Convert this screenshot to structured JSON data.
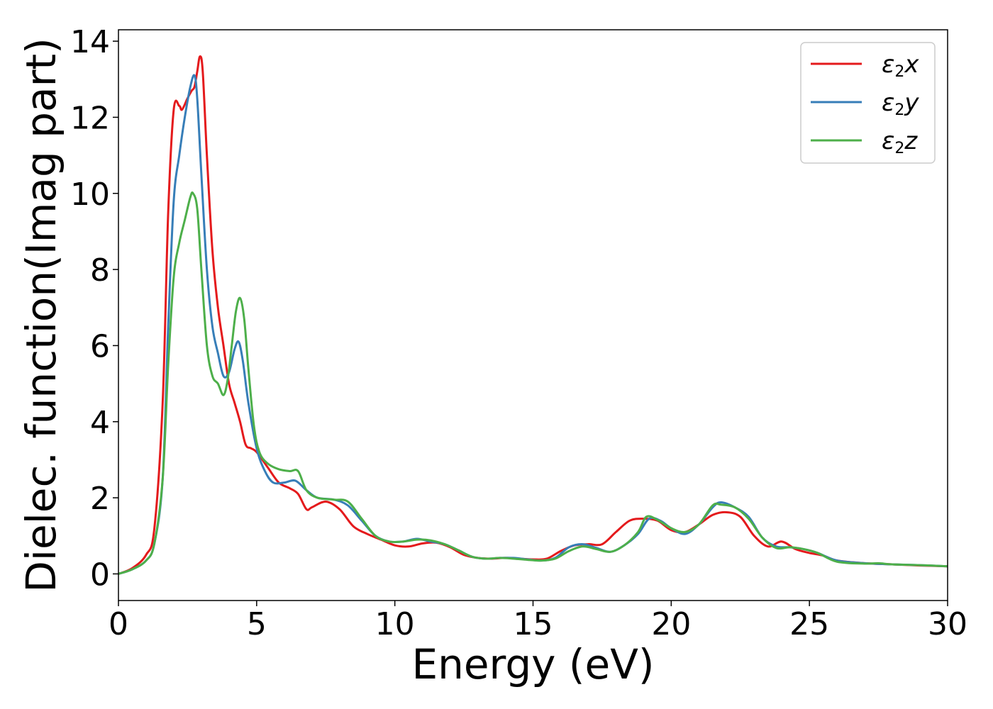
{
  "chart_data": {
    "type": "line",
    "title": "",
    "xlabel": "Energy (eV)",
    "ylabel": "Dielec. function(Imag part)",
    "xlim": [
      0,
      30
    ],
    "ylim": [
      -0.7,
      14.3
    ],
    "xticks": [
      0,
      5,
      10,
      15,
      20,
      25,
      30
    ],
    "xtick_labels": [
      "0",
      "5",
      "10",
      "15",
      "20",
      "25",
      "30"
    ],
    "yticks": [
      0,
      2,
      4,
      6,
      8,
      10,
      12,
      14
    ],
    "ytick_labels": [
      "0",
      "2",
      "4",
      "6",
      "8",
      "10",
      "12",
      "14"
    ],
    "grid": false,
    "legend_position": "top-right",
    "series": [
      {
        "name": "ε₂x",
        "legend_main": "ε",
        "legend_sub": "2",
        "legend_suffix": "x",
        "color": "#e41a1c",
        "x": [
          0,
          0.5,
          1.0,
          1.3,
          1.6,
          1.8,
          2.0,
          2.2,
          2.3,
          2.5,
          2.65,
          2.75,
          2.85,
          2.95,
          3.05,
          3.2,
          3.4,
          3.6,
          3.8,
          4.0,
          4.2,
          4.4,
          4.6,
          4.8,
          5.0,
          5.4,
          5.8,
          6.2,
          6.5,
          6.8,
          7.0,
          7.5,
          8.0,
          8.5,
          9.0,
          9.5,
          10.0,
          10.5,
          11.0,
          11.5,
          12.0,
          12.5,
          13.0,
          13.5,
          14.0,
          14.5,
          15.0,
          15.5,
          16.0,
          16.5,
          17.0,
          17.5,
          18.0,
          18.5,
          19.0,
          19.5,
          20.0,
          20.5,
          21.0,
          21.5,
          22.0,
          22.5,
          23.0,
          23.5,
          24.0,
          24.5,
          25.0,
          25.5,
          26.0,
          27.0,
          28.0,
          29.0,
          30.0
        ],
        "y": [
          0.0,
          0.15,
          0.5,
          1.2,
          4.5,
          9.5,
          12.2,
          12.3,
          12.2,
          12.5,
          12.7,
          12.8,
          13.2,
          13.6,
          13.2,
          11.0,
          8.5,
          7.0,
          6.0,
          5.0,
          4.5,
          4.0,
          3.4,
          3.3,
          3.2,
          2.8,
          2.4,
          2.25,
          2.1,
          1.7,
          1.75,
          1.9,
          1.7,
          1.25,
          1.05,
          0.9,
          0.75,
          0.72,
          0.8,
          0.82,
          0.7,
          0.5,
          0.42,
          0.4,
          0.42,
          0.4,
          0.38,
          0.4,
          0.6,
          0.75,
          0.78,
          0.78,
          1.1,
          1.4,
          1.45,
          1.4,
          1.15,
          1.1,
          1.3,
          1.55,
          1.62,
          1.5,
          1.0,
          0.72,
          0.85,
          0.65,
          0.55,
          0.48,
          0.35,
          0.28,
          0.25,
          0.22,
          0.2
        ]
      },
      {
        "name": "ε₂y",
        "legend_main": "ε",
        "legend_sub": "2",
        "legend_suffix": "y",
        "color": "#377eb8",
        "x": [
          0,
          0.5,
          1.0,
          1.3,
          1.6,
          1.8,
          2.0,
          2.2,
          2.4,
          2.6,
          2.75,
          2.85,
          3.0,
          3.2,
          3.4,
          3.6,
          3.8,
          4.0,
          4.2,
          4.35,
          4.5,
          4.7,
          5.0,
          5.3,
          5.6,
          6.0,
          6.4,
          6.8,
          7.2,
          7.8,
          8.3,
          8.8,
          9.3,
          9.8,
          10.3,
          10.8,
          11.3,
          11.8,
          12.3,
          12.8,
          13.3,
          13.8,
          14.3,
          14.8,
          15.3,
          15.8,
          16.3,
          16.8,
          17.3,
          17.8,
          18.3,
          18.8,
          19.2,
          19.6,
          20.0,
          20.5,
          21.0,
          21.5,
          21.8,
          22.3,
          22.8,
          23.3,
          23.8,
          24.3,
          24.8,
          25.3,
          26.0,
          27.0,
          28.0,
          29.0,
          30.0
        ],
        "y": [
          0.0,
          0.12,
          0.35,
          0.8,
          2.5,
          6.5,
          9.8,
          11.0,
          12.0,
          12.8,
          13.1,
          12.5,
          10.5,
          8.0,
          6.5,
          5.8,
          5.2,
          5.3,
          5.9,
          6.1,
          5.6,
          4.5,
          3.3,
          2.7,
          2.4,
          2.4,
          2.45,
          2.2,
          2.0,
          1.95,
          1.8,
          1.4,
          1.0,
          0.85,
          0.85,
          0.92,
          0.85,
          0.78,
          0.62,
          0.45,
          0.4,
          0.42,
          0.42,
          0.38,
          0.35,
          0.42,
          0.7,
          0.78,
          0.68,
          0.58,
          0.75,
          1.05,
          1.45,
          1.4,
          1.2,
          1.05,
          1.3,
          1.75,
          1.88,
          1.75,
          1.5,
          0.95,
          0.72,
          0.7,
          0.65,
          0.55,
          0.35,
          0.28,
          0.25,
          0.23,
          0.2
        ]
      },
      {
        "name": "ε₂z",
        "legend_main": "ε",
        "legend_sub": "2",
        "legend_suffix": "z",
        "color": "#4daf4a",
        "x": [
          0,
          0.5,
          1.0,
          1.3,
          1.6,
          1.8,
          2.0,
          2.2,
          2.4,
          2.6,
          2.7,
          2.85,
          3.0,
          3.2,
          3.4,
          3.6,
          3.8,
          3.95,
          4.1,
          4.25,
          4.4,
          4.55,
          4.7,
          4.9,
          5.1,
          5.4,
          5.8,
          6.2,
          6.5,
          6.8,
          7.2,
          7.8,
          8.3,
          8.8,
          9.3,
          9.8,
          10.3,
          10.8,
          11.3,
          11.8,
          12.3,
          12.8,
          13.3,
          13.8,
          14.3,
          14.8,
          15.3,
          15.8,
          16.3,
          16.8,
          17.3,
          17.8,
          18.3,
          18.8,
          19.1,
          19.5,
          20.0,
          20.5,
          21.0,
          21.5,
          21.8,
          22.3,
          22.8,
          23.3,
          23.8,
          24.3,
          24.8,
          25.3,
          26.0,
          27.0,
          27.5,
          28.0,
          29.0,
          30.0
        ],
        "y": [
          0.0,
          0.12,
          0.35,
          0.8,
          2.5,
          5.5,
          7.8,
          8.7,
          9.3,
          9.9,
          10.0,
          9.6,
          8.0,
          6.0,
          5.2,
          5.0,
          4.7,
          5.1,
          6.0,
          6.9,
          7.25,
          6.7,
          5.4,
          3.9,
          3.2,
          2.9,
          2.75,
          2.7,
          2.7,
          2.2,
          2.0,
          1.95,
          1.9,
          1.45,
          1.0,
          0.85,
          0.85,
          0.9,
          0.88,
          0.78,
          0.62,
          0.45,
          0.4,
          0.42,
          0.4,
          0.37,
          0.35,
          0.4,
          0.6,
          0.72,
          0.65,
          0.58,
          0.75,
          1.1,
          1.5,
          1.42,
          1.2,
          1.1,
          1.3,
          1.8,
          1.82,
          1.75,
          1.45,
          0.95,
          0.68,
          0.7,
          0.65,
          0.55,
          0.32,
          0.27,
          0.28,
          0.25,
          0.23,
          0.2
        ]
      }
    ]
  }
}
